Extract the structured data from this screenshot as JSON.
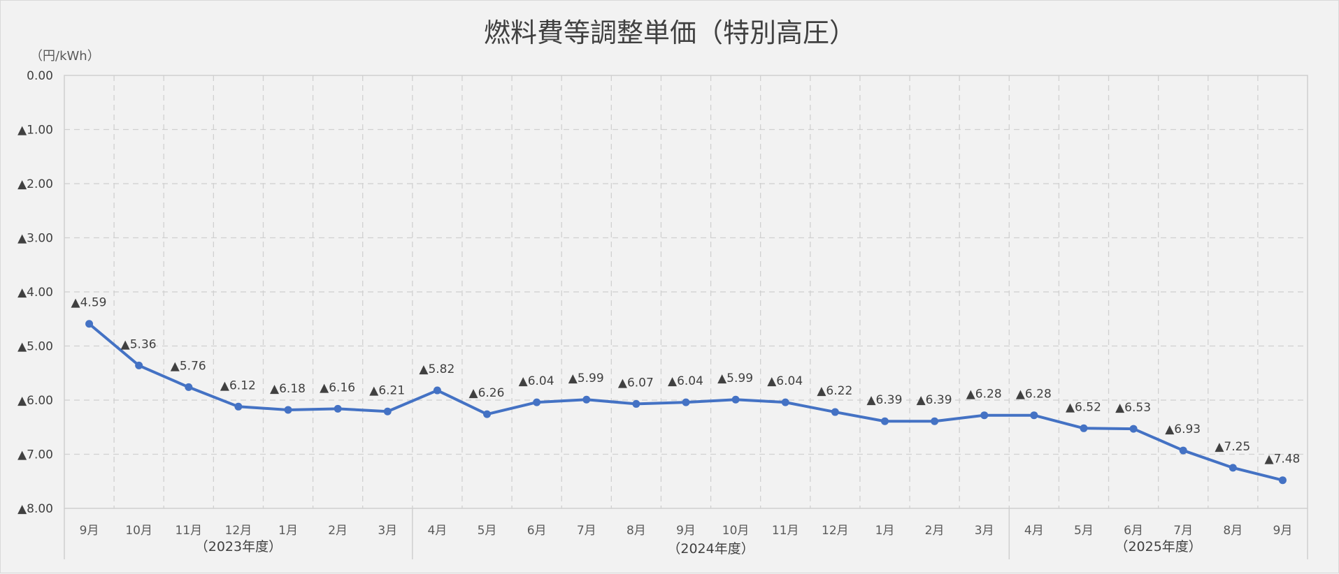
{
  "chart_data": {
    "type": "line",
    "title": "燃料費等調整単価（特別高圧）",
    "unit_label": "（円/kWh）",
    "negative_marker": "▲",
    "ylim": [
      0,
      -8
    ],
    "y_ticks": [
      "0.00",
      "▲1.00",
      "▲2.00",
      "▲3.00",
      "▲4.00",
      "▲5.00",
      "▲6.00",
      "▲7.00",
      "▲8.00"
    ],
    "categories": [
      "9月",
      "10月",
      "11月",
      "12月",
      "1月",
      "2月",
      "3月",
      "4月",
      "5月",
      "6月",
      "7月",
      "8月",
      "9月",
      "10月",
      "11月",
      "12月",
      "1月",
      "2月",
      "3月",
      "4月",
      "5月",
      "6月",
      "7月",
      "8月",
      "9月"
    ],
    "category_groups": [
      {
        "label": "（2023年度）",
        "start": 0,
        "end": 6
      },
      {
        "label": "（2024年度）",
        "start": 7,
        "end": 18
      },
      {
        "label": "（2025年度）",
        "start": 19,
        "end": 24
      }
    ],
    "series": [
      {
        "values": [
          -4.59,
          -5.36,
          -5.76,
          -6.12,
          -6.18,
          -6.16,
          -6.21,
          -5.82,
          -6.26,
          -6.04,
          -5.99,
          -6.07,
          -6.04,
          -5.99,
          -6.04,
          -6.22,
          -6.39,
          -6.39,
          -6.28,
          -6.28,
          -6.52,
          -6.53,
          -6.93,
          -7.25,
          -7.48
        ],
        "data_labels": [
          "▲4.59",
          "▲5.36",
          "▲5.76",
          "▲6.12",
          "▲6.18",
          "▲6.16",
          "▲6.21",
          "▲5.82",
          "▲6.26",
          "▲6.04",
          "▲5.99",
          "▲6.07",
          "▲6.04",
          "▲5.99",
          "▲6.04",
          "▲6.22",
          "▲6.39",
          "▲6.39",
          "▲6.28",
          "▲6.28",
          "▲6.52",
          "▲6.53",
          "▲6.93",
          "▲7.25",
          "▲7.48"
        ],
        "color": "#4472c4"
      }
    ],
    "grid": true,
    "legend": false
  }
}
